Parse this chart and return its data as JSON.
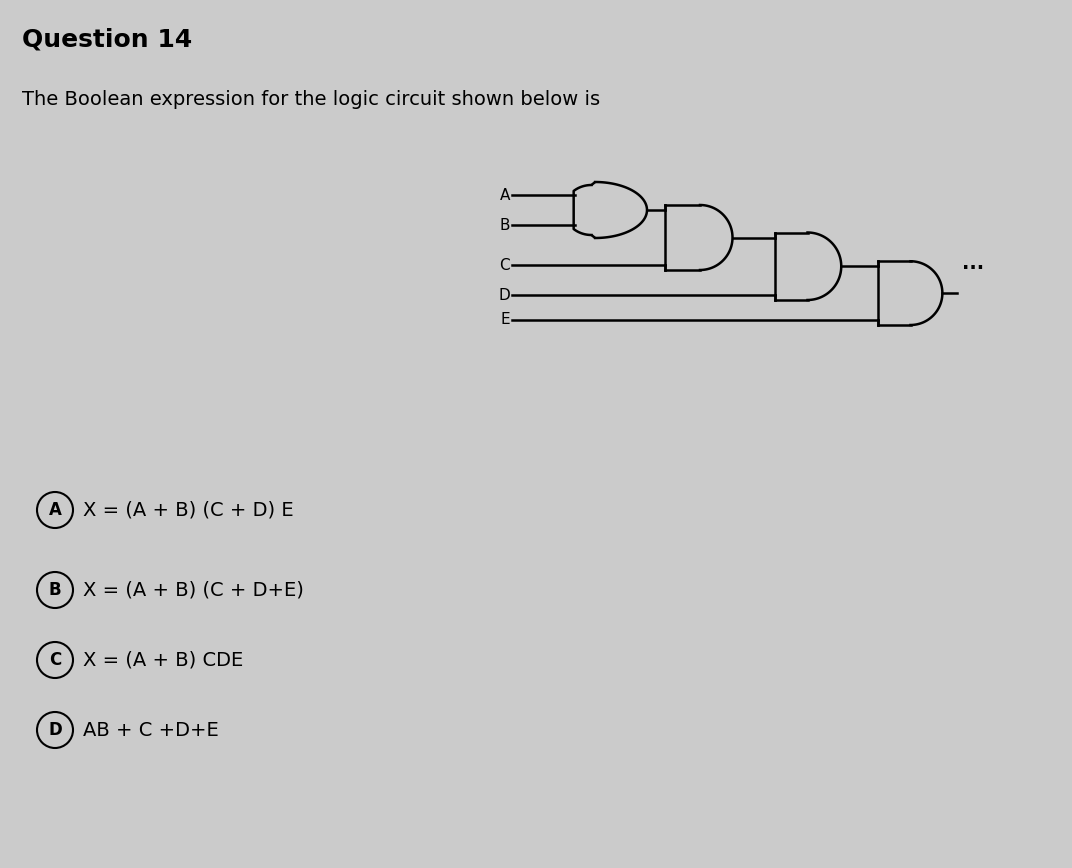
{
  "title": "Question 14",
  "subtitle": "The Boolean expression for the logic circuit shown below is",
  "background_color": "#cbcbcb",
  "text_color": "#000000",
  "options": [
    {
      "label": "A",
      "text": "X = (A + B) (C + D) E"
    },
    {
      "label": "B",
      "text": "X = (A + B) (C + D+E)"
    },
    {
      "label": "C",
      "text": "X = (A + B) CDE"
    },
    {
      "label": "D",
      "text": "AB + C +D+E"
    }
  ],
  "circuit_inputs": [
    "A",
    "B",
    "C",
    "D",
    "E"
  ],
  "dots_text": "...",
  "title_fontsize": 18,
  "subtitle_fontsize": 14,
  "option_fontsize": 14
}
